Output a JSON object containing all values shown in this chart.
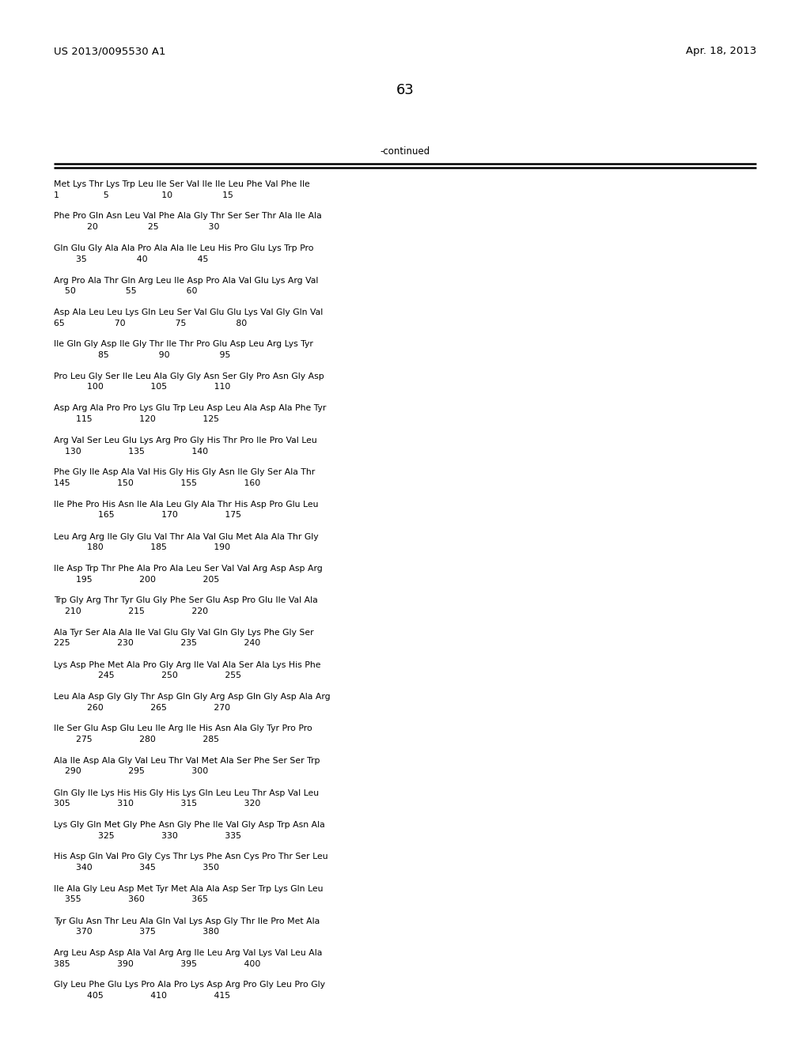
{
  "header_left": "US 2013/0095530 A1",
  "header_right": "Apr. 18, 2013",
  "page_number": "63",
  "continued_label": "-continued",
  "background_color": "#ffffff",
  "text_color": "#000000",
  "sequence_blocks": [
    [
      "Met Lys Thr Lys Trp Leu Ile Ser Val Ile Ile Leu Phe Val Phe Ile",
      "1                5                   10                  15"
    ],
    [
      "Phe Pro Gln Asn Leu Val Phe Ala Gly Thr Ser Ser Thr Ala Ile Ala",
      "            20                  25                  30"
    ],
    [
      "Gln Glu Gly Ala Ala Pro Ala Ala Ile Leu His Pro Glu Lys Trp Pro",
      "        35                  40                  45"
    ],
    [
      "Arg Pro Ala Thr Gln Arg Leu Ile Asp Pro Ala Val Glu Lys Arg Val",
      "    50                  55                  60"
    ],
    [
      "Asp Ala Leu Leu Lys Gln Leu Ser Val Glu Glu Lys Val Gly Gln Val",
      "65                  70                  75                  80"
    ],
    [
      "Ile Gln Gly Asp Ile Gly Thr Ile Thr Pro Glu Asp Leu Arg Lys Tyr",
      "                85                  90                  95"
    ],
    [
      "Pro Leu Gly Ser Ile Leu Ala Gly Gly Asn Ser Gly Pro Asn Gly Asp",
      "            100                 105                 110"
    ],
    [
      "Asp Arg Ala Pro Pro Lys Glu Trp Leu Asp Leu Ala Asp Ala Phe Tyr",
      "        115                 120                 125"
    ],
    [
      "Arg Val Ser Leu Glu Lys Arg Pro Gly His Thr Pro Ile Pro Val Leu",
      "    130                 135                 140"
    ],
    [
      "Phe Gly Ile Asp Ala Val His Gly His Gly Asn Ile Gly Ser Ala Thr",
      "145                 150                 155                 160"
    ],
    [
      "Ile Phe Pro His Asn Ile Ala Leu Gly Ala Thr His Asp Pro Glu Leu",
      "                165                 170                 175"
    ],
    [
      "Leu Arg Arg Ile Gly Glu Val Thr Ala Val Glu Met Ala Ala Thr Gly",
      "            180                 185                 190"
    ],
    [
      "Ile Asp Trp Thr Phe Ala Pro Ala Leu Ser Val Val Arg Asp Asp Arg",
      "        195                 200                 205"
    ],
    [
      "Trp Gly Arg Thr Tyr Glu Gly Phe Ser Glu Asp Pro Glu Ile Val Ala",
      "    210                 215                 220"
    ],
    [
      "Ala Tyr Ser Ala Ala Ile Val Glu Gly Val Gln Gly Lys Phe Gly Ser",
      "225                 230                 235                 240"
    ],
    [
      "Lys Asp Phe Met Ala Pro Gly Arg Ile Val Ala Ser Ala Lys His Phe",
      "                245                 250                 255"
    ],
    [
      "Leu Ala Asp Gly Gly Thr Asp Gln Gly Arg Asp Gln Gly Asp Ala Arg",
      "            260                 265                 270"
    ],
    [
      "Ile Ser Glu Asp Glu Leu Ile Arg Ile His Asn Ala Gly Tyr Pro Pro",
      "        275                 280                 285"
    ],
    [
      "Ala Ile Asp Ala Gly Val Leu Thr Val Met Ala Ser Phe Ser Ser Trp",
      "    290                 295                 300"
    ],
    [
      "Gln Gly Ile Lys His His Gly His Lys Gln Leu Leu Thr Asp Val Leu",
      "305                 310                 315                 320"
    ],
    [
      "Lys Gly Gln Met Gly Phe Asn Gly Phe Ile Val Gly Asp Trp Asn Ala",
      "                325                 330                 335"
    ],
    [
      "His Asp Gln Val Pro Gly Cys Thr Lys Phe Asn Cys Pro Thr Ser Leu",
      "        340                 345                 350"
    ],
    [
      "Ile Ala Gly Leu Asp Met Tyr Met Ala Ala Asp Ser Trp Lys Gln Leu",
      "    355                 360                 365"
    ],
    [
      "Tyr Glu Asn Thr Leu Ala Gln Val Lys Asp Gly Thr Ile Pro Met Ala",
      "        370                 375                 380"
    ],
    [
      "Arg Leu Asp Asp Ala Val Arg Arg Ile Leu Arg Val Lys Val Leu Ala",
      "385                 390                 395                 400"
    ],
    [
      "Gly Leu Phe Glu Lys Pro Ala Pro Lys Asp Arg Pro Gly Leu Pro Gly",
      "            405                 410                 415"
    ]
  ]
}
